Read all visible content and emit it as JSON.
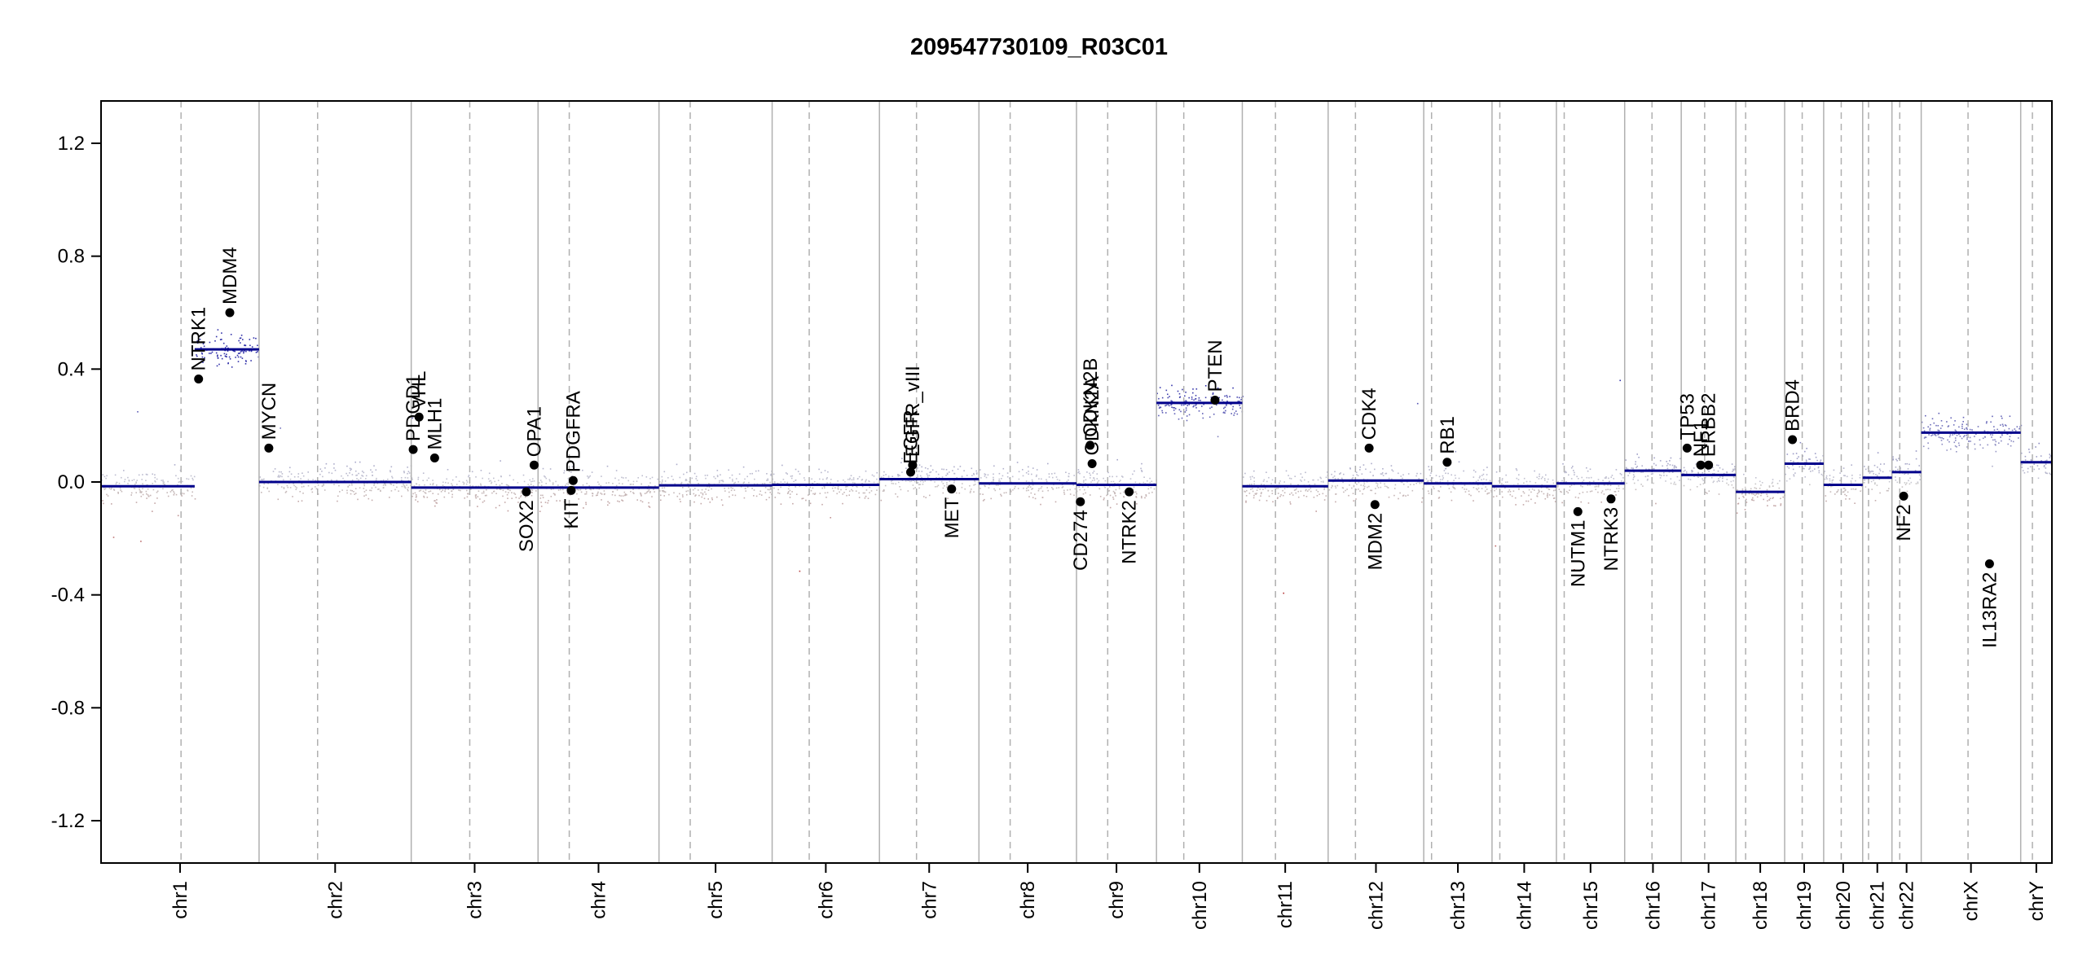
{
  "chart_data": {
    "type": "scatter",
    "title": "209547730109_R03C01",
    "xlabel": "",
    "ylabel": "",
    "ylim": [
      -1.35,
      1.35
    ],
    "y_ticks": [
      -1.2,
      -0.8,
      -0.4,
      0.0,
      0.4,
      0.8,
      1.2
    ],
    "y_tick_labels": [
      "-1.2",
      "-0.8",
      "-0.4",
      "0.0",
      "0.4",
      "0.8",
      "1.2"
    ],
    "grid": false,
    "colors": {
      "segment": "#00008B",
      "gain": "#3b3bb0",
      "loss": "#b03030",
      "neutral": "#aaaaaa",
      "chrom_boundary": "#b0b0b0",
      "centromere": "#b0b0b0"
    },
    "chromosomes": [
      {
        "name": "chr1",
        "start": 0,
        "end": 0.081,
        "cen": 0.041
      },
      {
        "name": "chr2",
        "start": 0.081,
        "end": 0.159,
        "cen": 0.111
      },
      {
        "name": "chr3",
        "start": 0.159,
        "end": 0.224,
        "cen": 0.189
      },
      {
        "name": "chr4",
        "start": 0.224,
        "end": 0.286,
        "cen": 0.24
      },
      {
        "name": "chr5",
        "start": 0.286,
        "end": 0.344,
        "cen": 0.302
      },
      {
        "name": "chr6",
        "start": 0.344,
        "end": 0.399,
        "cen": 0.363
      },
      {
        "name": "chr7",
        "start": 0.399,
        "end": 0.45,
        "cen": 0.418
      },
      {
        "name": "chr8",
        "start": 0.45,
        "end": 0.5,
        "cen": 0.466
      },
      {
        "name": "chr9",
        "start": 0.5,
        "end": 0.541,
        "cen": 0.516
      },
      {
        "name": "chr10",
        "start": 0.541,
        "end": 0.585,
        "cen": 0.555
      },
      {
        "name": "chr11",
        "start": 0.585,
        "end": 0.629,
        "cen": 0.602
      },
      {
        "name": "chr12",
        "start": 0.629,
        "end": 0.678,
        "cen": 0.643
      },
      {
        "name": "chr13",
        "start": 0.678,
        "end": 0.713,
        "cen": 0.682
      },
      {
        "name": "chr14",
        "start": 0.713,
        "end": 0.746,
        "cen": 0.717
      },
      {
        "name": "chr15",
        "start": 0.746,
        "end": 0.781,
        "cen": 0.75
      },
      {
        "name": "chr16",
        "start": 0.781,
        "end": 0.81,
        "cen": 0.795
      },
      {
        "name": "chr17",
        "start": 0.81,
        "end": 0.838,
        "cen": 0.822
      },
      {
        "name": "chr18",
        "start": 0.838,
        "end": 0.863,
        "cen": 0.843
      },
      {
        "name": "chr19",
        "start": 0.863,
        "end": 0.883,
        "cen": 0.872
      },
      {
        "name": "chr20",
        "start": 0.883,
        "end": 0.903,
        "cen": 0.892
      },
      {
        "name": "chr21",
        "start": 0.903,
        "end": 0.918,
        "cen": 0.906
      },
      {
        "name": "chr22",
        "start": 0.918,
        "end": 0.933,
        "cen": 0.922
      },
      {
        "name": "chrX",
        "start": 0.933,
        "end": 0.984,
        "cen": 0.957
      },
      {
        "name": "chrY",
        "start": 0.984,
        "end": 1.0,
        "cen": 0.99
      }
    ],
    "segments": [
      {
        "x0": 0.0,
        "x1": 0.048,
        "y": -0.015
      },
      {
        "x0": 0.048,
        "x1": 0.081,
        "y": 0.47
      },
      {
        "x0": 0.081,
        "x1": 0.159,
        "y": 0.0
      },
      {
        "x0": 0.159,
        "x1": 0.224,
        "y": -0.02
      },
      {
        "x0": 0.224,
        "x1": 0.286,
        "y": -0.02
      },
      {
        "x0": 0.286,
        "x1": 0.344,
        "y": -0.012
      },
      {
        "x0": 0.344,
        "x1": 0.399,
        "y": -0.01
      },
      {
        "x0": 0.399,
        "x1": 0.45,
        "y": 0.01
      },
      {
        "x0": 0.45,
        "x1": 0.5,
        "y": -0.005
      },
      {
        "x0": 0.5,
        "x1": 0.541,
        "y": -0.01
      },
      {
        "x0": 0.541,
        "x1": 0.585,
        "y": 0.28
      },
      {
        "x0": 0.585,
        "x1": 0.629,
        "y": -0.015
      },
      {
        "x0": 0.629,
        "x1": 0.678,
        "y": 0.005
      },
      {
        "x0": 0.678,
        "x1": 0.713,
        "y": -0.005
      },
      {
        "x0": 0.713,
        "x1": 0.746,
        "y": -0.015
      },
      {
        "x0": 0.746,
        "x1": 0.781,
        "y": -0.005
      },
      {
        "x0": 0.781,
        "x1": 0.81,
        "y": 0.04
      },
      {
        "x0": 0.81,
        "x1": 0.838,
        "y": 0.025
      },
      {
        "x0": 0.838,
        "x1": 0.863,
        "y": -0.035
      },
      {
        "x0": 0.863,
        "x1": 0.883,
        "y": 0.065
      },
      {
        "x0": 0.883,
        "x1": 0.903,
        "y": -0.01
      },
      {
        "x0": 0.903,
        "x1": 0.918,
        "y": 0.015
      },
      {
        "x0": 0.918,
        "x1": 0.933,
        "y": 0.035
      },
      {
        "x0": 0.933,
        "x1": 0.984,
        "y": 0.175
      },
      {
        "x0": 0.984,
        "x1": 1.0,
        "y": 0.07
      }
    ],
    "genes": [
      {
        "name": "NTRK1",
        "pos": 0.05,
        "y": 0.365,
        "label_side": "above"
      },
      {
        "name": "MDM4",
        "pos": 0.066,
        "y": 0.6,
        "label_side": "above"
      },
      {
        "name": "MYCN",
        "pos": 0.086,
        "y": 0.12,
        "label_side": "above"
      },
      {
        "name": "PDGD1",
        "pos": 0.16,
        "y": 0.115,
        "label_side": "above"
      },
      {
        "name": "VHL",
        "pos": 0.163,
        "y": 0.23,
        "label_side": "above"
      },
      {
        "name": "MLH1",
        "pos": 0.171,
        "y": 0.085,
        "label_side": "above"
      },
      {
        "name": "SOX2",
        "pos": 0.218,
        "y": -0.035,
        "label_side": "below"
      },
      {
        "name": "OPA1",
        "pos": 0.222,
        "y": 0.06,
        "label_side": "above"
      },
      {
        "name": "KIT",
        "pos": 0.241,
        "y": -0.03,
        "label_side": "below"
      },
      {
        "name": "PDGFRA",
        "pos": 0.242,
        "y": 0.005,
        "label_side": "above"
      },
      {
        "name": "EGFR",
        "pos": 0.415,
        "y": 0.035,
        "label_side": "above"
      },
      {
        "name": "EGFR_vIII",
        "pos": 0.416,
        "y": 0.06,
        "label_side": "above"
      },
      {
        "name": "MET",
        "pos": 0.436,
        "y": -0.025,
        "label_side": "below"
      },
      {
        "name": "CD274",
        "pos": 0.502,
        "y": -0.07,
        "label_side": "below"
      },
      {
        "name": "CDKN2A",
        "pos": 0.508,
        "y": 0.065,
        "label_side": "above"
      },
      {
        "name": "CDKN2B",
        "pos": 0.507,
        "y": 0.13,
        "label_side": "above"
      },
      {
        "name": "NTRK2",
        "pos": 0.527,
        "y": -0.035,
        "label_side": "below"
      },
      {
        "name": "PTEN",
        "pos": 0.571,
        "y": 0.29,
        "label_side": "above"
      },
      {
        "name": "CDK4",
        "pos": 0.65,
        "y": 0.12,
        "label_side": "above"
      },
      {
        "name": "MDM2",
        "pos": 0.653,
        "y": -0.08,
        "label_side": "below"
      },
      {
        "name": "RB1",
        "pos": 0.69,
        "y": 0.07,
        "label_side": "above"
      },
      {
        "name": "NUTM1",
        "pos": 0.757,
        "y": -0.105,
        "label_side": "below"
      },
      {
        "name": "NTRK3",
        "pos": 0.774,
        "y": -0.06,
        "label_side": "below"
      },
      {
        "name": "TP53",
        "pos": 0.813,
        "y": 0.12,
        "label_side": "above"
      },
      {
        "name": "NF1",
        "pos": 0.82,
        "y": 0.06,
        "label_side": "above"
      },
      {
        "name": "ERBB2",
        "pos": 0.824,
        "y": 0.06,
        "label_side": "above"
      },
      {
        "name": "BRD4",
        "pos": 0.867,
        "y": 0.15,
        "label_side": "above"
      },
      {
        "name": "NF2",
        "pos": 0.924,
        "y": -0.05,
        "label_side": "below"
      },
      {
        "name": "IL13RA2",
        "pos": 0.968,
        "y": -0.29,
        "label_side": "below"
      }
    ]
  }
}
